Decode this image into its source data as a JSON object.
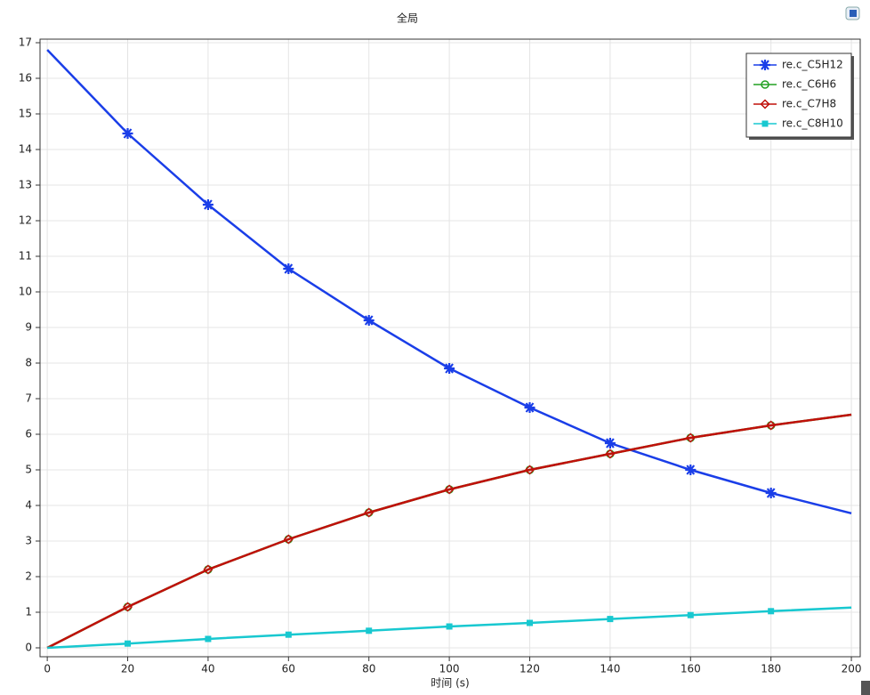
{
  "chart_data": {
    "type": "line",
    "title": "全局",
    "x_label": "时间 (s)",
    "x": [
      0,
      20,
      40,
      60,
      80,
      100,
      120,
      140,
      160,
      180,
      200
    ],
    "series": [
      {
        "name": "re.c_C5H12",
        "color": "#1a3ee8",
        "marker": "asterisk",
        "values": [
          16.8,
          14.45,
          12.45,
          10.65,
          9.2,
          7.85,
          6.75,
          5.75,
          5.0,
          4.35,
          3.78
        ]
      },
      {
        "name": "re.c_C6H6",
        "color": "#22a022",
        "marker": "circle",
        "values": [
          0,
          1.15,
          2.2,
          3.05,
          3.8,
          4.45,
          5.0,
          5.45,
          5.9,
          6.25,
          6.55
        ]
      },
      {
        "name": "re.c_C7H8",
        "color": "#c0100a",
        "marker": "diamond",
        "values": [
          0,
          1.15,
          2.2,
          3.05,
          3.8,
          4.45,
          5.0,
          5.45,
          5.9,
          6.25,
          6.55
        ]
      },
      {
        "name": "re.c_C8H10",
        "color": "#18c8d0",
        "marker": "square",
        "values": [
          0,
          0.12,
          0.25,
          0.37,
          0.48,
          0.6,
          0.7,
          0.81,
          0.92,
          1.03,
          1.13
        ]
      }
    ],
    "xlim": [
      -1.8,
      202.2
    ],
    "ylim": [
      -0.25,
      17.1
    ],
    "xticks": [
      0,
      20,
      40,
      60,
      80,
      100,
      120,
      140,
      160,
      180,
      200
    ],
    "yticks": [
      0,
      1,
      2,
      3,
      4,
      5,
      6,
      7,
      8,
      9,
      10,
      11,
      12,
      13,
      14,
      15,
      16,
      17
    ],
    "grid": true,
    "legend": "top-right"
  }
}
